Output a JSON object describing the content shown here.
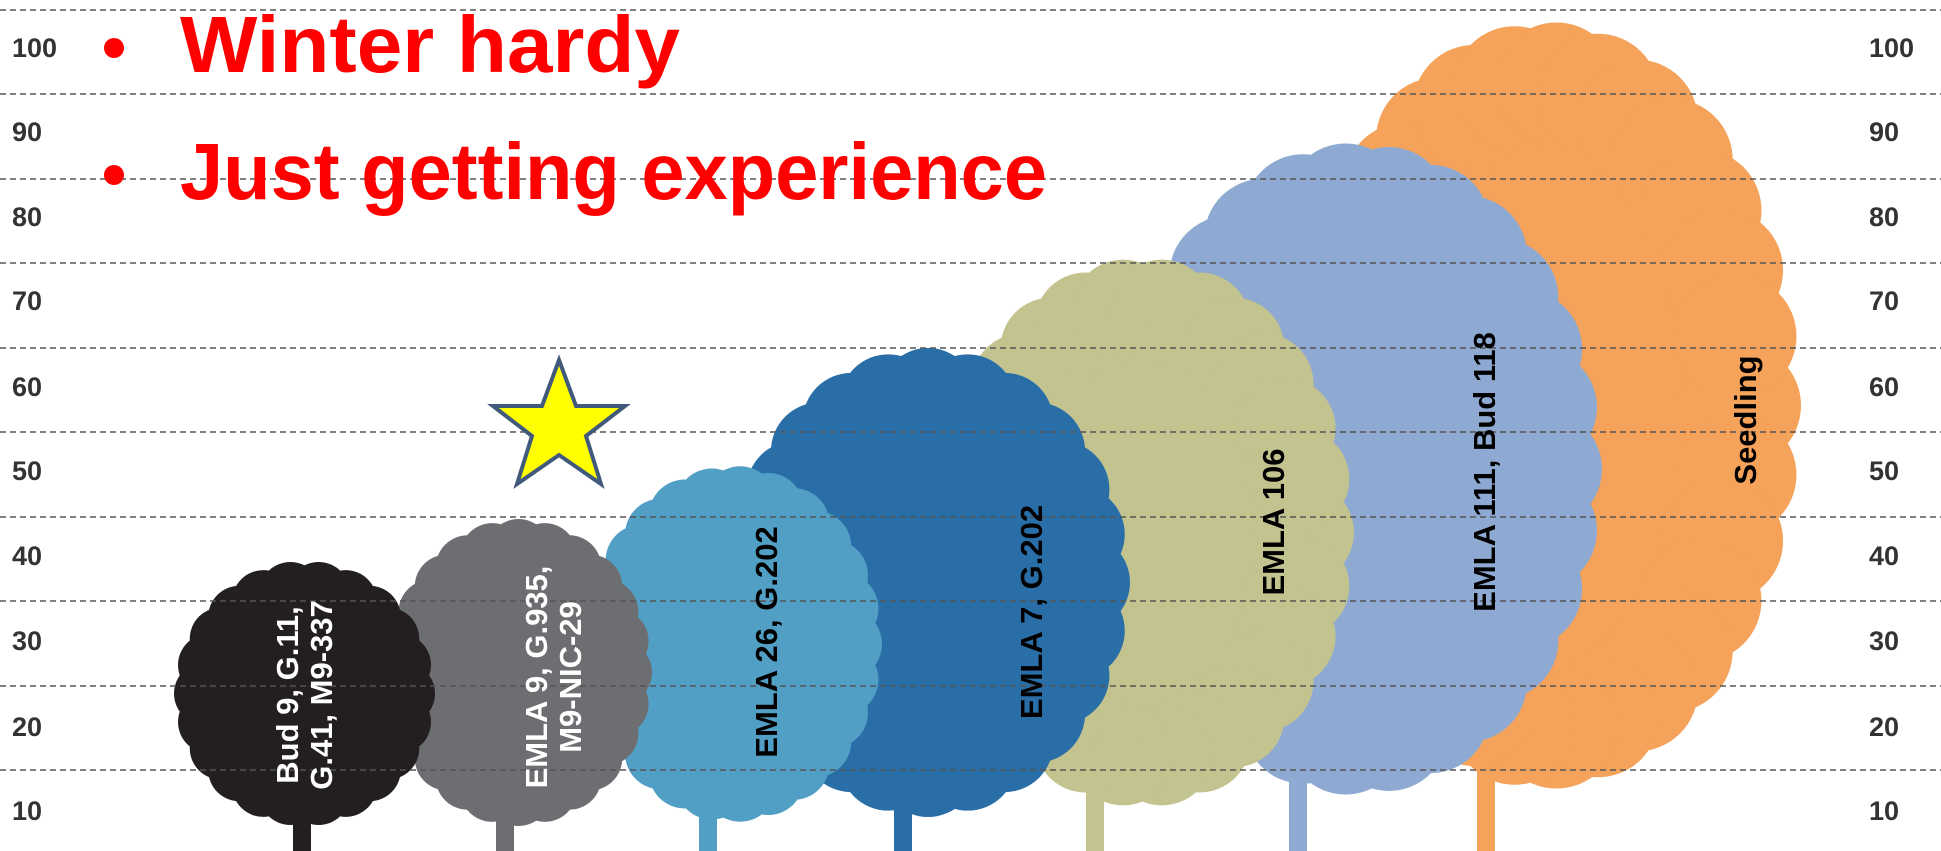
{
  "bullets": [
    "Winter hardy",
    "Just getting experience"
  ],
  "scale": {
    "ticks": [
      100,
      90,
      80,
      70,
      60,
      50,
      40,
      30,
      20,
      10
    ]
  },
  "trees": [
    {
      "label_lines": [
        "Bud 9, G.11,",
        "G.41, M9-337"
      ]
    },
    {
      "label_lines": [
        "EMLA 9, G.935,",
        "M9-NIC-29"
      ]
    },
    {
      "label_lines": [
        "EMLA 26, G.202"
      ]
    },
    {
      "label_lines": [
        "EMLA 7, G.202"
      ]
    },
    {
      "label_lines": [
        "EMLA 106"
      ]
    },
    {
      "label_lines": [
        "EMLA 111, Bud 118"
      ]
    },
    {
      "label_lines": [
        "Seedling"
      ]
    }
  ]
}
